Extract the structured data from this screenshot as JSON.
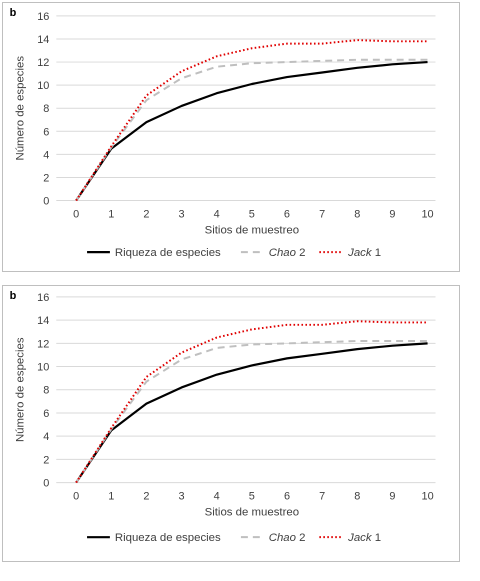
{
  "panels": [
    {
      "letter": "b"
    },
    {
      "letter": "b"
    }
  ],
  "legend": {
    "riqueza": "Riqueza de especies",
    "chao_name": "Chao",
    "chao_num": " 2",
    "jack_name": "Jack",
    "jack_num": " 1"
  },
  "colors": {
    "riqueza": "#000000",
    "chao": "#bfbfbf",
    "jack": "#e00000",
    "grid": "#d9d9d9"
  },
  "chart_data": [
    {
      "type": "line",
      "x": [
        0,
        1,
        2,
        3,
        4,
        5,
        6,
        7,
        8,
        9,
        10
      ],
      "xlabel": "Sitios de muestreo",
      "ylabel": "Número de especies",
      "ylim": [
        0,
        16
      ],
      "yticks": [
        0,
        2,
        4,
        6,
        8,
        10,
        12,
        14,
        16
      ],
      "grid": true,
      "legend_position": "bottom",
      "series": [
        {
          "name": "Riqueza de especies",
          "style": "solid",
          "values": [
            0,
            4.5,
            6.8,
            8.2,
            9.3,
            10.1,
            10.7,
            11.1,
            11.5,
            11.8,
            12.0
          ]
        },
        {
          "name": "Chao 2",
          "style": "dashed",
          "values": [
            0,
            4.6,
            8.7,
            10.6,
            11.6,
            11.9,
            12.0,
            12.1,
            12.2,
            12.2,
            12.2
          ]
        },
        {
          "name": "Jack 1",
          "style": "dotted",
          "values": [
            0,
            4.7,
            9.1,
            11.2,
            12.5,
            13.2,
            13.6,
            13.6,
            13.9,
            13.8,
            13.8
          ]
        }
      ]
    },
    {
      "type": "line",
      "x": [
        0,
        1,
        2,
        3,
        4,
        5,
        6,
        7,
        8,
        9,
        10
      ],
      "xlabel": "Sitios de muestreo",
      "ylabel": "Número de especies",
      "ylim": [
        0,
        16
      ],
      "yticks": [
        0,
        2,
        4,
        6,
        8,
        10,
        12,
        14,
        16
      ],
      "grid": true,
      "legend_position": "bottom",
      "series": [
        {
          "name": "Riqueza de especies",
          "style": "solid",
          "values": [
            0,
            4.5,
            6.8,
            8.2,
            9.3,
            10.1,
            10.7,
            11.1,
            11.5,
            11.8,
            12.0
          ]
        },
        {
          "name": "Chao 2",
          "style": "dashed",
          "values": [
            0,
            4.6,
            8.7,
            10.6,
            11.6,
            11.9,
            12.0,
            12.1,
            12.2,
            12.2,
            12.2
          ]
        },
        {
          "name": "Jack 1",
          "style": "dotted",
          "values": [
            0,
            4.7,
            9.1,
            11.2,
            12.5,
            13.2,
            13.6,
            13.6,
            13.9,
            13.8,
            13.8
          ]
        }
      ]
    }
  ]
}
